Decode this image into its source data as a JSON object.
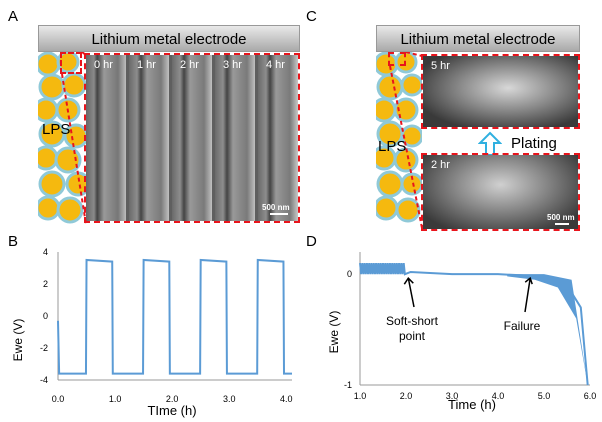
{
  "panels": {
    "a": {
      "letter": "A",
      "electrode": "Lithium metal electrode",
      "lps": "LPS",
      "frames": [
        "0 hr",
        "1 hr",
        "2 hr",
        "3 hr",
        "4 hr"
      ],
      "scale": "500 nm"
    },
    "b": {
      "letter": "B",
      "ylabel": "Ewe (V)",
      "xlabel": "TIme (h)",
      "yticks": [
        "4",
        "2",
        "0",
        "-2",
        "-4"
      ],
      "xticks": [
        "0.0",
        "1.0",
        "2.0",
        "3.0",
        "4.0"
      ]
    },
    "c": {
      "letter": "C",
      "electrode": "Lithium metal electrode",
      "lps": "LPS",
      "top_label": "5 hr",
      "bottom_label": "2 hr",
      "arrow_label": "Plating",
      "scale": "500 nm"
    },
    "d": {
      "letter": "D",
      "ylabel": "Ewe (V)",
      "xlabel": "Time (h)",
      "yticks": [
        "0",
        "-1"
      ],
      "xticks": [
        "1.0",
        "2.0",
        "3.0",
        "4.0",
        "5.0",
        "6.0"
      ],
      "annotations": [
        "Soft-short\npoint",
        "Failure"
      ]
    }
  },
  "colors": {
    "line": "#5b9bd5",
    "dash": "#e8141c",
    "particle": "#f5b90f",
    "particle_edge": "#8fc9d8"
  },
  "chart_data": [
    {
      "type": "line",
      "ylabel": "Ewe (V)",
      "xlabel": "TIme (h)",
      "xlim": [
        0,
        4.1
      ],
      "ylim": [
        -4,
        4
      ],
      "series": [
        {
          "x": [
            0,
            0.45,
            0.5,
            0.95,
            1.0,
            1.45,
            1.5,
            1.95,
            2.0,
            2.05,
            2.45,
            2.5,
            2.95,
            3.0,
            3.45,
            3.5,
            3.95,
            4.0
          ],
          "values": [
            -3.6,
            -3.6,
            3.5,
            3.5,
            -3.6,
            -3.6,
            3.5,
            3.4,
            -0.5,
            -3.5,
            -3.5,
            3.3,
            3.2,
            -3.5,
            -3.5,
            3.2,
            3.0,
            -3.6
          ]
        }
      ]
    },
    {
      "type": "line",
      "ylabel": "Ewe (V)",
      "xlabel": "Time (h)",
      "xlim": [
        1,
        6
      ],
      "ylim": [
        -1,
        0.2
      ],
      "series": [
        {
          "x": [
            1,
            1.5,
            2.0,
            2.1,
            3.0,
            4.0,
            4.5,
            5.0,
            5.5,
            5.8,
            5.95
          ],
          "values": [
            0.05,
            0.05,
            0.05,
            0.02,
            0.0,
            0.0,
            -0.01,
            -0.03,
            -0.1,
            -0.3,
            -1.0
          ]
        }
      ]
    }
  ]
}
